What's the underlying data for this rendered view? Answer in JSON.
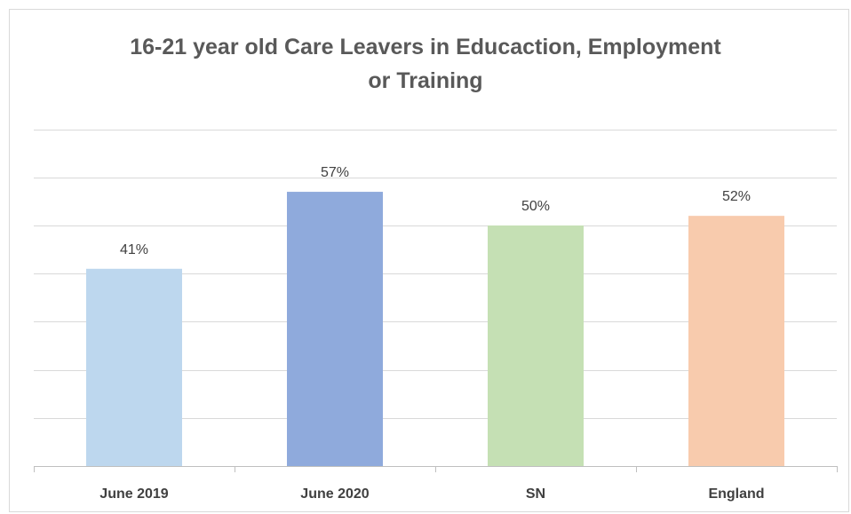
{
  "chart_data": {
    "type": "bar",
    "title_lines": [
      "16-21 year old Care Leavers in Educaction, Employment",
      "or Training"
    ],
    "categories": [
      "June 2019",
      "June 2020",
      "SN",
      "England"
    ],
    "values": [
      41,
      57,
      50,
      52
    ],
    "data_labels": [
      "41%",
      "57%",
      "50%",
      "52%"
    ],
    "bar_colors": [
      "#bdd7ee",
      "#8faadc",
      "#c5e0b4",
      "#f8cbad"
    ],
    "ylim": [
      0,
      70
    ],
    "grid": true,
    "legend": "none"
  }
}
